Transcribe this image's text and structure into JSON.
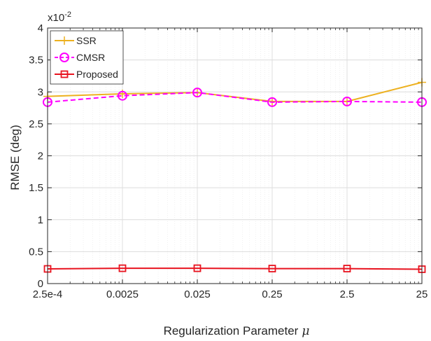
{
  "chart_data": {
    "type": "line",
    "x_scale": "log",
    "x": [
      0.00025,
      0.0025,
      0.025,
      0.25,
      2.5,
      25
    ],
    "x_tick_labels": [
      "2.5e-4",
      "0.0025",
      "0.025",
      "0.25",
      "2.5",
      "25"
    ],
    "xlabel": "Regularization Parameter",
    "xlabel_symbol": "μ",
    "ylabel": "RMSE (deg)",
    "y_multiplier": "x10",
    "y_multiplier_exp": "-2",
    "ylim": [
      0,
      4
    ],
    "y_ticks": [
      0,
      0.5,
      1,
      1.5,
      2,
      2.5,
      3,
      3.5,
      4
    ],
    "y_tick_labels": [
      "0",
      "0.5",
      "1",
      "1.5",
      "2",
      "2.5",
      "3",
      "3.5",
      "4"
    ],
    "grid": true,
    "minor_grid": true,
    "legend_position": "top-left",
    "series": [
      {
        "name": "SSR",
        "color": "#EDB120",
        "marker": "plus",
        "line": "solid",
        "values": [
          2.93,
          2.97,
          2.99,
          2.85,
          2.85,
          3.15
        ]
      },
      {
        "name": "CMSR",
        "color": "#FF00FF",
        "marker": "circle",
        "line": "dashed",
        "values": [
          2.84,
          2.94,
          2.99,
          2.84,
          2.85,
          2.84
        ]
      },
      {
        "name": "Proposed",
        "color": "#E8131F",
        "marker": "square",
        "line": "solid",
        "values": [
          0.23,
          0.24,
          0.24,
          0.235,
          0.235,
          0.225
        ]
      }
    ]
  }
}
